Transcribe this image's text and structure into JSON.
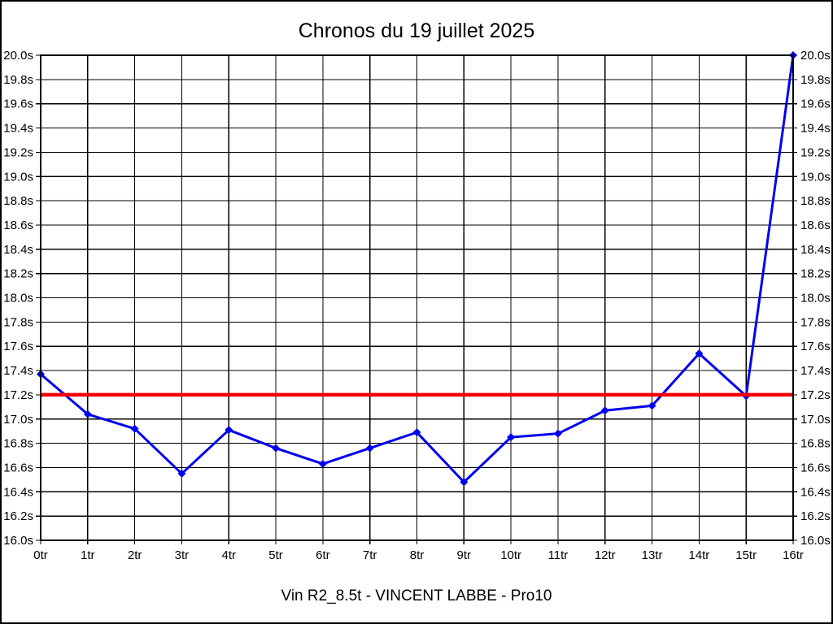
{
  "page": {
    "title": "Chronos du 19 juillet 2025",
    "caption": "Vin R2_8.5t - VINCENT LABBE - Pro10"
  },
  "chart_data": {
    "type": "line",
    "title": "Chronos du 19 juillet 2025",
    "subtitle": "Vin R2_8.5t - VINCENT LABBE - Pro10",
    "xlabel": "",
    "ylabel": "",
    "x_unit": "tr",
    "y_unit": "s",
    "categories": [
      "0tr",
      "1tr",
      "2tr",
      "3tr",
      "4tr",
      "5tr",
      "6tr",
      "7tr",
      "8tr",
      "9tr",
      "10tr",
      "11tr",
      "12tr",
      "13tr",
      "14tr",
      "15tr",
      "16tr"
    ],
    "y_tick_labels": [
      "20.0s",
      "19.8s",
      "19.6s",
      "19.4s",
      "19.2s",
      "19.0s",
      "18.8s",
      "18.6s",
      "18.4s",
      "18.2s",
      "18.0s",
      "17.8s",
      "17.6s",
      "17.4s",
      "17.2s",
      "17.0s",
      "16.8s",
      "16.6s",
      "16.4s",
      "16.2s",
      "16.0s"
    ],
    "ylim": [
      16.0,
      20.0
    ],
    "ytick_step": 0.2,
    "grid": true,
    "y_labels_both_sides": true,
    "legend": "none",
    "series": [
      {
        "name": "chrono",
        "color": "#0000ee",
        "marker": "diamond",
        "values": [
          17.37,
          17.04,
          16.92,
          16.55,
          16.91,
          16.76,
          16.63,
          16.76,
          16.89,
          16.48,
          16.85,
          16.88,
          17.07,
          17.11,
          17.54,
          17.19,
          20.0
        ]
      }
    ],
    "reference_line": {
      "value": 17.2,
      "color": "#f00000"
    }
  },
  "colors": {
    "background": "#ffffff",
    "border": "#000000",
    "grid": "#000000",
    "series_blue": "#0000ee",
    "reference_red": "#f00000"
  }
}
